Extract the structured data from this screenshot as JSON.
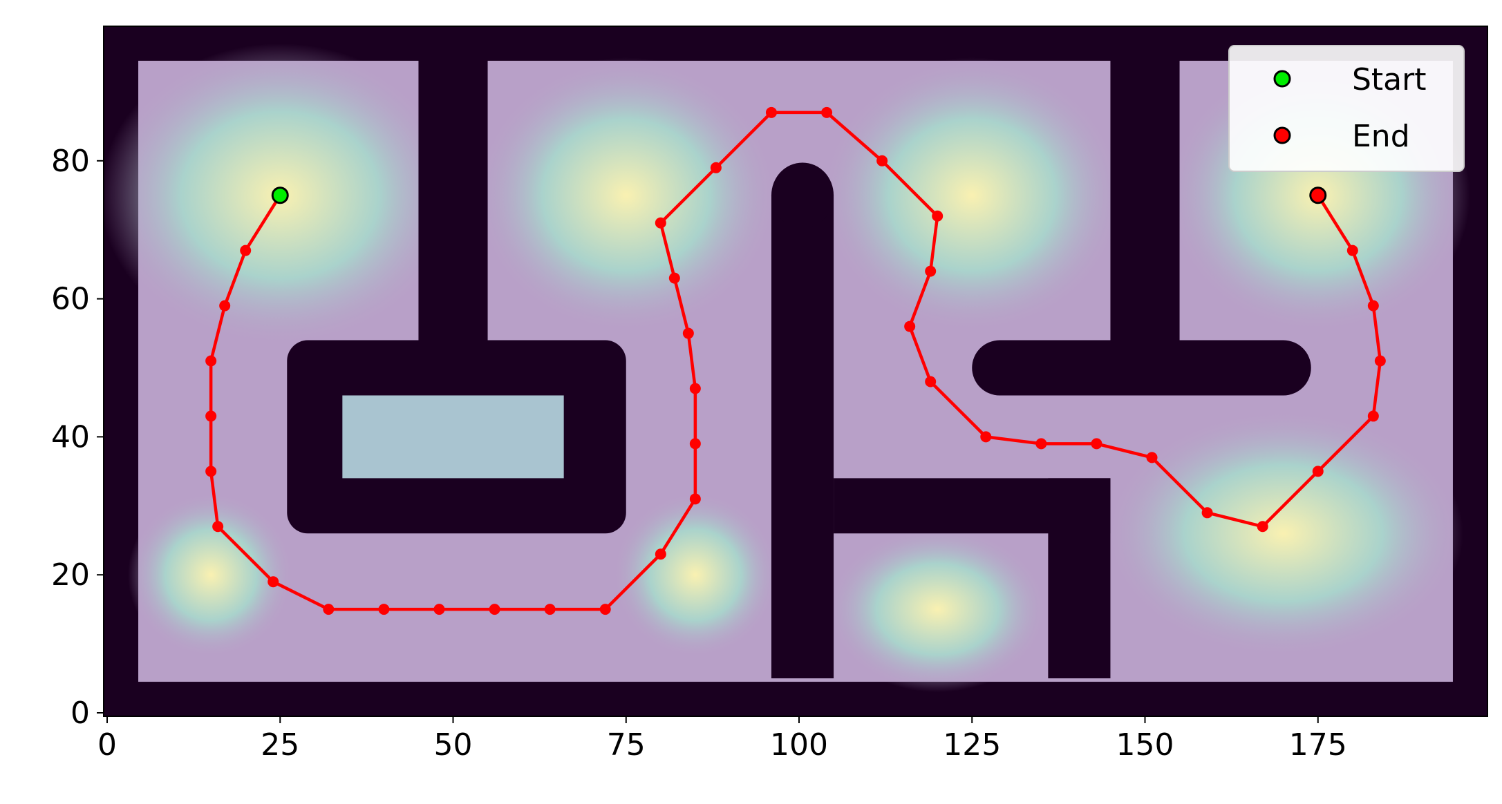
{
  "chart_data": {
    "type": "line",
    "title": "",
    "xlabel": "",
    "ylabel": "",
    "xlim": [
      -0.5,
      199.5
    ],
    "ylim": [
      -0.5,
      99.5
    ],
    "grid": false,
    "legend_placement": "top-right",
    "x_ticks": [
      0,
      25,
      50,
      75,
      100,
      125,
      150,
      175
    ],
    "y_ticks": [
      0,
      20,
      40,
      60,
      80
    ],
    "x_tick_labels": [
      "0",
      "25",
      "50",
      "75",
      "100",
      "125",
      "150",
      "175"
    ],
    "y_tick_labels": [
      "0",
      "20",
      "40",
      "60",
      "80"
    ],
    "background": {
      "type": "heatmap",
      "description_free": true,
      "obstacle_color": "#1a0020",
      "free_space_colors": [
        "#b8a0c8",
        "#a8d8cc",
        "#fdf5b0"
      ],
      "outer_wall_thickness": 5,
      "obstacles": [
        {
          "kind": "rect",
          "x": [
            45,
            55
          ],
          "y": [
            54,
            95
          ]
        },
        {
          "kind": "rect",
          "x": [
            145,
            155
          ],
          "y": [
            54,
            95
          ]
        },
        {
          "kind": "rounded_loop",
          "outer_x": [
            26,
            75
          ],
          "outer_y": [
            26,
            54
          ],
          "inner_x": [
            34,
            66
          ],
          "inner_y": [
            34,
            46
          ]
        },
        {
          "kind": "rounded_bar",
          "x": [
            125,
            174
          ],
          "y": [
            46,
            54
          ]
        },
        {
          "kind": "rounded_column",
          "x": [
            96,
            105
          ],
          "y": [
            5,
            79
          ]
        },
        {
          "kind": "rect",
          "x": [
            105,
            145
          ],
          "y": [
            26,
            34
          ]
        },
        {
          "kind": "rect",
          "x": [
            136,
            145
          ],
          "y": [
            5,
            34
          ]
        }
      ]
    },
    "series": [
      {
        "color": "#ff0000",
        "x": [
          25,
          20,
          17,
          15,
          15,
          15,
          16,
          24,
          32,
          40,
          48,
          56,
          64,
          72,
          80,
          85,
          85,
          85,
          84,
          82,
          80,
          88,
          96,
          104,
          112,
          120,
          119,
          116,
          119,
          127,
          135,
          143,
          151,
          159,
          167,
          175,
          183,
          184,
          183,
          180,
          175
        ],
        "y": [
          75,
          67,
          59,
          51,
          43,
          35,
          27,
          19,
          15,
          15,
          15,
          15,
          15,
          15,
          23,
          31,
          39,
          47,
          55,
          63,
          71,
          79,
          87,
          87,
          80,
          72,
          64,
          56,
          48,
          40,
          39,
          39,
          37,
          29,
          27,
          35,
          43,
          51,
          59,
          67,
          75
        ]
      }
    ],
    "markers": [
      {
        "name": "Start",
        "x": 25,
        "y": 75,
        "color": "#00ee00"
      },
      {
        "name": "End",
        "x": 175,
        "y": 75,
        "color": "#ff0000"
      }
    ]
  }
}
